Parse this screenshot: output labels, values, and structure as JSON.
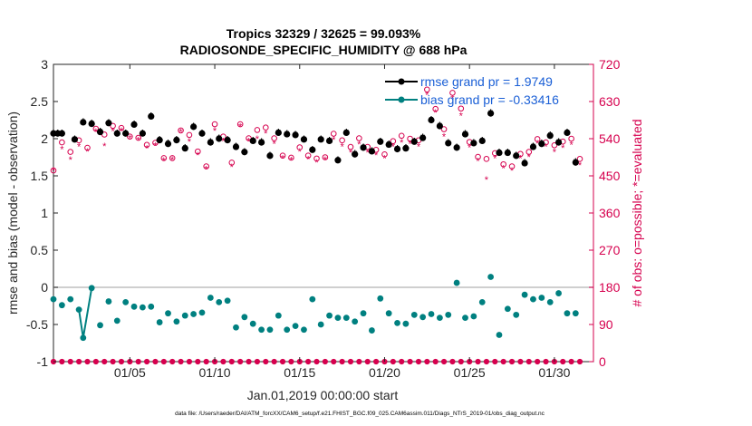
{
  "chart_data": {
    "type": "scatter",
    "title_line1": "Tropics 32329 / 32625 = 99.093%",
    "title_line2": "RADIOSONDE_SPECIFIC_HUMIDITY @ 688 hPa",
    "xlabel": "Jan.01,2019 00:00:00 start",
    "ylabel_left": "rmse and bias (model - observation)",
    "ylabel_right": "# of obs: o=possible; *=evaluated",
    "footer": "data file: /Users/raeder/DAI/ATM_forcXX/CAM6_setup/f.e21.FHIST_BGC.f09_025.CAM6assim.011/Diags_NTrS_2019-01/obs_diag_output.nc",
    "x_range": [
      0.5,
      32.3
    ],
    "ylim_left": [
      -1,
      3
    ],
    "ylim_right": [
      0,
      720
    ],
    "x_ticks": [
      {
        "x": 5,
        "label": "01/05"
      },
      {
        "x": 10,
        "label": "01/10"
      },
      {
        "x": 15,
        "label": "01/15"
      },
      {
        "x": 20,
        "label": "01/20"
      },
      {
        "x": 25,
        "label": "01/25"
      },
      {
        "x": 30,
        "label": "01/30"
      }
    ],
    "y_ticks_left": [
      {
        "v": 3,
        "label": "3"
      },
      {
        "v": 2.5,
        "label": "2.5"
      },
      {
        "v": 2,
        "label": "2"
      },
      {
        "v": 1.5,
        "label": "1.5"
      },
      {
        "v": 1,
        "label": "1"
      },
      {
        "v": 0.5,
        "label": "0.5"
      },
      {
        "v": 0,
        "label": "0"
      },
      {
        "v": -0.5,
        "label": "-0.5"
      },
      {
        "v": -1,
        "label": "-1"
      }
    ],
    "y_ticks_right": [
      {
        "v": 720,
        "label": "720"
      },
      {
        "v": 630,
        "label": "630"
      },
      {
        "v": 540,
        "label": "540"
      },
      {
        "v": 450,
        "label": "450"
      },
      {
        "v": 360,
        "label": "360"
      },
      {
        "v": 270,
        "label": "270"
      },
      {
        "v": 180,
        "label": "180"
      },
      {
        "v": 90,
        "label": "90"
      },
      {
        "v": 0,
        "label": "0"
      }
    ],
    "legend": [
      {
        "label": "rmse grand pr = 1.9749",
        "color": "#000000"
      },
      {
        "label": "bias grand pr = -0.33416",
        "color": "#008080"
      }
    ],
    "colors": {
      "rmse": "#000000",
      "bias": "#008080",
      "obs": "#d6004e",
      "zero_line": "#bfbfbf",
      "right_axis": "#d6004e"
    },
    "series": [
      {
        "name": "rmse",
        "x": [
          0.5,
          0.75,
          1.0,
          1.75,
          2.25,
          2.75,
          3.25,
          3.75,
          4.25,
          4.75,
          5.25,
          5.75,
          6.25,
          6.75,
          7.25,
          7.75,
          8.25,
          8.75,
          9.25,
          9.75,
          10.25,
          10.75,
          11.25,
          11.75,
          12.25,
          12.75,
          13.25,
          13.75,
          14.25,
          14.75,
          15.25,
          15.75,
          16.25,
          16.75,
          17.25,
          17.75,
          18.25,
          18.75,
          19.25,
          19.75,
          20.25,
          20.75,
          21.25,
          21.75,
          22.25,
          22.75,
          23.25,
          23.75,
          24.25,
          24.75,
          25.25,
          25.75,
          26.25,
          26.75,
          27.25,
          27.75,
          28.25,
          28.75,
          29.25,
          29.75,
          30.25,
          30.75,
          31.25
        ],
        "values": [
          2.07,
          2.07,
          2.07,
          1.99,
          2.22,
          2.2,
          2.09,
          2.21,
          2.07,
          2.07,
          2.19,
          2.07,
          2.3,
          1.98,
          1.93,
          1.98,
          1.87,
          2.16,
          2.07,
          1.95,
          2.0,
          1.98,
          1.89,
          1.82,
          1.97,
          1.95,
          1.77,
          2.08,
          2.06,
          2.05,
          1.99,
          1.85,
          1.99,
          1.97,
          1.71,
          2.08,
          1.79,
          1.88,
          1.83,
          1.96,
          1.92,
          1.86,
          1.87,
          1.96,
          2.01,
          2.25,
          2.17,
          1.94,
          1.88,
          2.06,
          1.94,
          1.97,
          2.34,
          1.81,
          1.81,
          1.77,
          1.67,
          1.89,
          1.93,
          2.04,
          1.95,
          2.08,
          1.68
        ]
      },
      {
        "name": "bias",
        "x": [
          0.5,
          1.0,
          1.5,
          2.0,
          2.25,
          2.75,
          3.25,
          3.75,
          4.25,
          4.75,
          5.25,
          5.75,
          6.25,
          6.75,
          7.25,
          7.75,
          8.25,
          8.75,
          9.25,
          9.75,
          10.25,
          10.75,
          11.25,
          11.75,
          12.25,
          12.75,
          13.25,
          13.75,
          14.25,
          14.75,
          15.25,
          15.75,
          16.25,
          16.75,
          17.25,
          17.75,
          18.25,
          18.75,
          19.25,
          19.75,
          20.25,
          20.75,
          21.25,
          21.75,
          22.25,
          22.75,
          23.25,
          23.75,
          24.25,
          24.75,
          25.25,
          25.75,
          26.25,
          26.75,
          27.25,
          27.75,
          28.25,
          28.75,
          29.25,
          29.75,
          30.25,
          30.75,
          31.25
        ],
        "values": [
          -0.16,
          -0.24,
          -0.16,
          -0.3,
          -0.68,
          -0.01,
          -0.51,
          -0.19,
          -0.45,
          -0.2,
          -0.26,
          -0.27,
          -0.26,
          -0.47,
          -0.35,
          -0.46,
          -0.38,
          -0.36,
          -0.34,
          -0.14,
          -0.2,
          -0.18,
          -0.54,
          -0.4,
          -0.49,
          -0.57,
          -0.57,
          -0.38,
          -0.57,
          -0.52,
          -0.57,
          -0.16,
          -0.5,
          -0.38,
          -0.41,
          -0.41,
          -0.46,
          -0.35,
          -0.58,
          -0.15,
          -0.35,
          -0.48,
          -0.49,
          -0.37,
          -0.4,
          -0.36,
          -0.41,
          -0.37,
          0.06,
          -0.41,
          -0.39,
          -0.2,
          0.14,
          -0.64,
          -0.29,
          -0.37,
          -0.1,
          -0.16,
          -0.14,
          -0.2,
          -0.08,
          -0.35,
          -0.35
        ]
      },
      {
        "name": "obs_possible",
        "x": [
          0.5,
          1.0,
          1.5,
          2.0,
          2.5,
          3.0,
          3.5,
          4.0,
          4.5,
          5.0,
          5.5,
          6.0,
          6.5,
          7.0,
          7.5,
          8.0,
          8.5,
          9.0,
          9.5,
          10.0,
          10.5,
          11.0,
          11.5,
          12.0,
          12.5,
          13.0,
          13.5,
          14.0,
          14.5,
          15.0,
          15.5,
          16.0,
          16.5,
          17.0,
          17.5,
          18.0,
          18.5,
          19.0,
          19.5,
          20.0,
          20.5,
          21.0,
          21.5,
          22.0,
          22.5,
          23.0,
          23.5,
          24.0,
          24.5,
          25.0,
          25.5,
          26.0,
          26.5,
          27.0,
          27.5,
          28.0,
          28.5,
          29.0,
          29.5,
          30.0,
          30.5,
          31.0,
          31.5
        ],
        "values": [
          463,
          531,
          508,
          536,
          518,
          564,
          550,
          571,
          566,
          545,
          542,
          525,
          530,
          493,
          493,
          560,
          549,
          509,
          473,
          575,
          545,
          482,
          575,
          541,
          561,
          567,
          541,
          499,
          494,
          519,
          499,
          492,
          495,
          552,
          536,
          520,
          541,
          520,
          513,
          502,
          534,
          547,
          540,
          536,
          659,
          612,
          563,
          651,
          613,
          532,
          496,
          491,
          505,
          478,
          473,
          503,
          508,
          539,
          531,
          524,
          533,
          540,
          491
        ]
      },
      {
        "name": "obs_evaluated",
        "x": [
          0.5,
          1.0,
          1.5,
          2.0,
          2.5,
          3.0,
          3.5,
          4.0,
          4.5,
          5.0,
          5.5,
          6.0,
          6.5,
          7.0,
          7.5,
          8.0,
          8.5,
          9.0,
          9.5,
          10.0,
          10.5,
          11.0,
          11.5,
          12.0,
          12.5,
          13.0,
          13.5,
          14.0,
          14.5,
          15.0,
          15.5,
          16.0,
          16.5,
          17.0,
          17.5,
          18.0,
          18.5,
          19.0,
          19.5,
          20.0,
          20.5,
          21.0,
          21.5,
          22.0,
          22.5,
          23.0,
          23.5,
          24.0,
          24.5,
          25.0,
          25.5,
          26.0,
          26.5,
          27.0,
          27.5,
          28.0,
          28.5,
          29.0,
          29.5,
          30.0,
          30.5,
          31.0,
          31.5
        ],
        "values": [
          463,
          515,
          490,
          521,
          509,
          558,
          522,
          559,
          560,
          541,
          537,
          517,
          523,
          487,
          489,
          557,
          533,
          501,
          466,
          560,
          535,
          472,
          570,
          535,
          540,
          553,
          528,
          493,
          488,
          509,
          491,
          483,
          489,
          538,
          521,
          507,
          527,
          507,
          500,
          493,
          521,
          531,
          528,
          521,
          647,
          604,
          545,
          638,
          596,
          519,
          486,
          441,
          493,
          469,
          463,
          493,
          496,
          529,
          521,
          508,
          518,
          526,
          476
        ]
      }
    ]
  }
}
